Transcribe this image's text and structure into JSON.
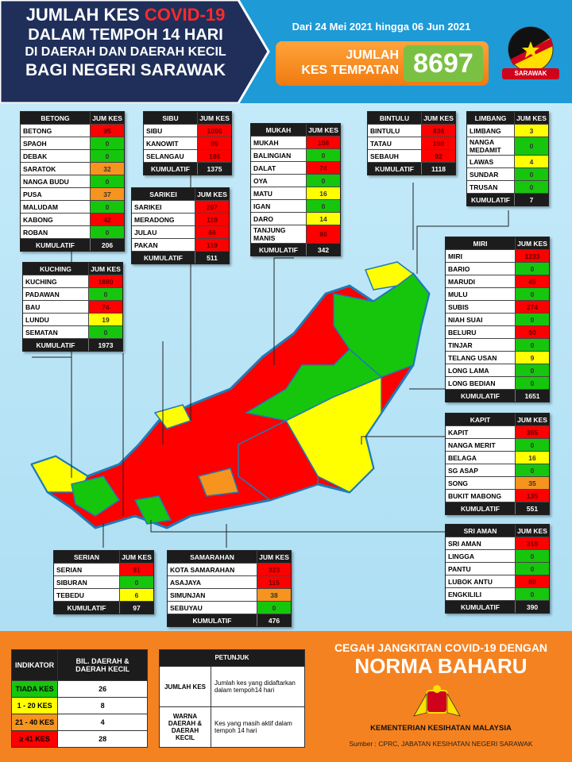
{
  "header": {
    "title_line1": "JUMLAH KES",
    "title_highlight": "COVID-19",
    "title_line2": "DALAM TEMPOH 14 HARI",
    "title_line3": "DI DAERAH DAN DAERAH KECIL",
    "title_line4": "BAGI NEGERI SARAWAK",
    "date_range": "Dari 24 Mei 2021 hingga 06 Jun 2021",
    "total_label_1": "JUMLAH",
    "total_label_2": "KES TEMPATAN",
    "total_value": 8697,
    "badge": "SARAWAK"
  },
  "divisions": [
    {
      "name": "BETONG",
      "column": "JUM KES",
      "rows": [
        [
          "BETONG",
          95
        ],
        [
          "SPAOH",
          0
        ],
        [
          "DEBAK",
          0
        ],
        [
          "SARATOK",
          32
        ],
        [
          "NANGA BUDU",
          0
        ],
        [
          "PUSA",
          37
        ],
        [
          "MALUDAM",
          0
        ],
        [
          "KABONG",
          42
        ],
        [
          "ROBAN",
          0
        ]
      ],
      "cumulative_label": "KUMULATIF",
      "cumulative": 206
    },
    {
      "name": "SIBU",
      "column": "JUM KES",
      "rows": [
        [
          "SIBU",
          1090
        ],
        [
          "KANOWIT",
          89
        ],
        [
          "SELANGAU",
          196
        ]
      ],
      "cumulative_label": "KUMULATIF",
      "cumulative": 1375
    },
    {
      "name": "SARIKEI",
      "column": "JUM KES",
      "rows": [
        [
          "SARIKEI",
          207
        ],
        [
          "MERADONG",
          119
        ],
        [
          "JULAU",
          66
        ],
        [
          "PAKAN",
          119
        ]
      ],
      "cumulative_label": "KUMULATIF",
      "cumulative": 511
    },
    {
      "name": "MUKAH",
      "column": "JUM KES",
      "rows": [
        [
          "MUKAH",
          158
        ],
        [
          "BALINGIAN",
          0
        ],
        [
          "DALAT",
          74
        ],
        [
          "OYA",
          0
        ],
        [
          "MATU",
          16
        ],
        [
          "IGAN",
          0
        ],
        [
          "DARO",
          14
        ],
        [
          "TANJUNG MANIS",
          80
        ]
      ],
      "cumulative_label": "KUMULATIF",
      "cumulative": 342
    },
    {
      "name": "BINTULU",
      "column": "JUM KES",
      "rows": [
        [
          "BINTULU",
          836
        ],
        [
          "TATAU",
          190
        ],
        [
          "SEBAUH",
          92
        ]
      ],
      "cumulative_label": "KUMULATIF",
      "cumulative": 1118
    },
    {
      "name": "LIMBANG",
      "column": "JUM KES",
      "rows": [
        [
          "LIMBANG",
          3
        ],
        [
          "NANGA MEDAMIT",
          0
        ],
        [
          "LAWAS",
          4
        ],
        [
          "SUNDAR",
          0
        ],
        [
          "TRUSAN",
          0
        ]
      ],
      "cumulative_label": "KUMULATIF",
      "cumulative": 7
    },
    {
      "name": "KUCHING",
      "column": "JUM KES",
      "rows": [
        [
          "KUCHING",
          1880
        ],
        [
          "PADAWAN",
          0
        ],
        [
          "BAU",
          74
        ],
        [
          "LUNDU",
          19
        ],
        [
          "SEMATAN",
          0
        ]
      ],
      "cumulative_label": "KUMULATIF",
      "cumulative": 1973
    },
    {
      "name": "MIRI",
      "column": "JUM KES",
      "rows": [
        [
          "MIRI",
          1233
        ],
        [
          "BARIO",
          0
        ],
        [
          "MARUDI",
          45
        ],
        [
          "MULU",
          0
        ],
        [
          "SUBIS",
          274
        ],
        [
          "NIAH SUAI",
          0
        ],
        [
          "BELURU",
          90
        ],
        [
          "TINJAR",
          0
        ],
        [
          "TELANG USAN",
          9
        ],
        [
          "LONG LAMA",
          0
        ],
        [
          "LONG BEDIAN",
          0
        ]
      ],
      "cumulative_label": "KUMULATIF",
      "cumulative": 1651
    },
    {
      "name": "KAPIT",
      "column": "JUM KES",
      "rows": [
        [
          "KAPIT",
          365
        ],
        [
          "NANGA MERIT",
          0
        ],
        [
          "BELAGA",
          16
        ],
        [
          "SG ASAP",
          0
        ],
        [
          "SONG",
          35
        ],
        [
          "BUKIT MABONG",
          135
        ]
      ],
      "cumulative_label": "KUMULATIF",
      "cumulative": 551
    },
    {
      "name": "SRI AMAN",
      "column": "JUM KES",
      "rows": [
        [
          "SRI AMAN",
          310
        ],
        [
          "LINGGA",
          0
        ],
        [
          "PANTU",
          0
        ],
        [
          "LUBOK ANTU",
          80
        ],
        [
          "ENGKILILI",
          0
        ]
      ],
      "cumulative_label": "KUMULATIF",
      "cumulative": 390
    },
    {
      "name": "SERIAN",
      "column": "JUM KES",
      "rows": [
        [
          "SERIAN",
          91
        ],
        [
          "SIBURAN",
          0
        ],
        [
          "TEBEDU",
          6
        ]
      ],
      "cumulative_label": "KUMULATIF",
      "cumulative": 97
    },
    {
      "name": "SAMARAHAN",
      "column": "JUM KES",
      "rows": [
        [
          "KOTA SAMARAHAN",
          323
        ],
        [
          "ASAJAYA",
          115
        ],
        [
          "SIMUNJAN",
          38
        ],
        [
          "SEBUYAU",
          0
        ]
      ],
      "cumulative_label": "KUMULATIF",
      "cumulative": 476
    }
  ],
  "legend": {
    "header": [
      "INDIKATOR",
      "BIL. DAERAH & DAERAH KECIL"
    ],
    "items": [
      {
        "label": "TIADA KES",
        "color": "#16c60c",
        "range": [
          0,
          0
        ],
        "count": 26
      },
      {
        "label": "1 - 20 KES",
        "color": "#ffff00",
        "range": [
          1,
          20
        ],
        "count": 8
      },
      {
        "label": "21 - 40 KES",
        "color": "#f7941d",
        "range": [
          21,
          40
        ],
        "count": 4
      },
      {
        "label": "≥ 41 KES",
        "color": "#ff0000",
        "range": [
          41,
          null
        ],
        "count": 28
      }
    ]
  },
  "guide": {
    "title": "PETUNJUK",
    "rows": [
      [
        "JUMLAH KES",
        "Jumlah kes yang didaftarkan dalam tempoh14 hari"
      ],
      [
        "WARNA DAERAH & DAERAH KECIL",
        "Kes yang masih aktif dalam tempoh 14 hari"
      ]
    ]
  },
  "footer": {
    "slogan_1": "CEGAH JANGKITAN COVID-19 DENGAN",
    "slogan_2": "NORMA BAHARU",
    "ministry": "KEMENTERIAN KESIHATAN MALAYSIA",
    "source": "Sumber : CPRC, JABATAN KESIHATAN NEGERI SARAWAK"
  }
}
